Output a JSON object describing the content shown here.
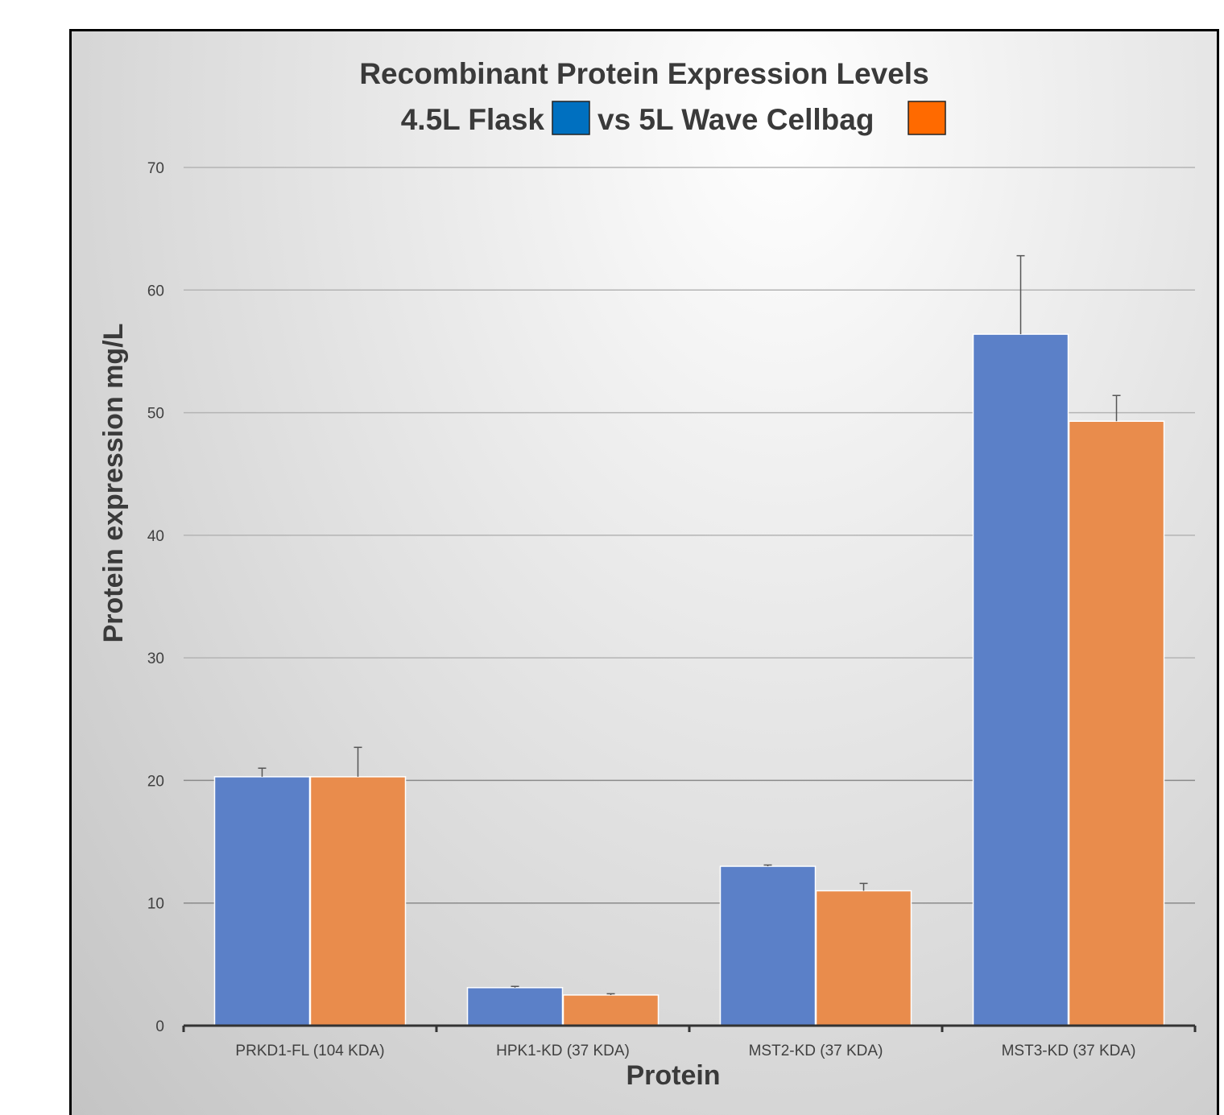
{
  "chart_data": {
    "type": "bar",
    "title": "Recombinant Protein Expression Levels",
    "subtitle_parts": [
      "4.5L Flask",
      "vs 5L Wave Cellbag"
    ],
    "xlabel": "Protein",
    "ylabel": "Protein expression mg/L",
    "ylim": [
      0,
      70
    ],
    "yticks": [
      0,
      10,
      20,
      30,
      40,
      50,
      60,
      70
    ],
    "grid": true,
    "legend": "inline-in-title",
    "categories": [
      "PRKD1-FL (104 KDA)",
      "HPK1-KD (37 KDA)",
      "MST2-KD (37 KDA)",
      "MST3-KD (37 KDA)"
    ],
    "series": [
      {
        "name": "4.5L Flask",
        "color": "#5b80c8",
        "swatch": "#0070c0",
        "values": [
          20.3,
          3.1,
          13.0,
          56.4
        ],
        "errors": [
          0.7,
          0.1,
          0.1,
          6.4
        ]
      },
      {
        "name": "5L Wave Cellbag",
        "color": "#e98c4c",
        "swatch": "#ff6a00",
        "values": [
          20.3,
          2.5,
          11.0,
          49.3
        ],
        "errors": [
          2.4,
          0.1,
          0.6,
          2.1
        ]
      }
    ]
  }
}
